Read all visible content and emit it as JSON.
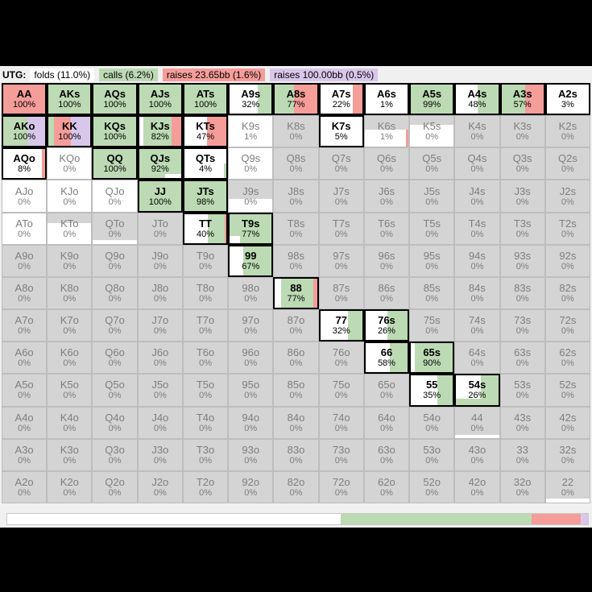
{
  "palette": {
    "w": "#ffffff",
    "g": "#bcdab3",
    "r": "#f59d99",
    "p": "#d8c7eb",
    "x": "#d4d4d4"
  },
  "header": {
    "position_label": "UTG:",
    "actions": [
      {
        "label": "folds (11.0%)",
        "color": "w"
      },
      {
        "label": "calls (6.2%)",
        "color": "g"
      },
      {
        "label": "raises 23.65bb (1.6%)",
        "color": "r"
      },
      {
        "label": "raises 100.00bb (0.5%)",
        "color": "p"
      }
    ]
  },
  "grid": {
    "rows": [
      [
        [
          "AA",
          "100%",
          1,
          "r100"
        ],
        [
          "AKs",
          "100%",
          1,
          "g100"
        ],
        [
          "AQs",
          "100%",
          1,
          "g100"
        ],
        [
          "AJs",
          "100%",
          1,
          "g100"
        ],
        [
          "ATs",
          "100%",
          1,
          "g100"
        ],
        [
          "A9s",
          "32%",
          1,
          "w66 g34"
        ],
        [
          "A8s",
          "77%",
          1,
          "g45 r55"
        ],
        [
          "A7s",
          "22%",
          1,
          "w78 r22"
        ],
        [
          "A6s",
          "1%",
          1,
          "w100"
        ],
        [
          "A5s",
          "99%",
          1,
          "g100"
        ],
        [
          "A4s",
          "48%",
          1,
          "w52 g48"
        ],
        [
          "A3s",
          "57%",
          1,
          "g57 r43"
        ],
        [
          "A2s",
          "3%",
          1,
          "w100"
        ]
      ],
      [
        [
          "AKo",
          "100%",
          1,
          "g58 p42"
        ],
        [
          "KK",
          "100%",
          1,
          "g13 r41 p46"
        ],
        [
          "KQs",
          "100%",
          1,
          "g100"
        ],
        [
          "KJs",
          "82%",
          1,
          "w10 g68 r22"
        ],
        [
          "KTs",
          "47%",
          1,
          "w53 r47"
        ],
        [
          "K9s",
          "1%",
          0,
          "w100"
        ],
        [
          "K8s",
          "0%",
          0,
          "x100"
        ],
        [
          "K7s",
          "5%",
          1,
          "w100"
        ],
        [
          "K6s",
          "1%",
          0,
          "x100",
          "w,100,55,l;r,6,55,r"
        ],
        [
          "K5s",
          "0%",
          0,
          "x100",
          "w,100,72,l"
        ],
        [
          "K4s",
          "0%",
          0,
          "x100"
        ],
        [
          "K3s",
          "0%",
          0,
          "x100"
        ],
        [
          "K2s",
          "0%",
          0,
          "x100"
        ]
      ],
      [
        [
          "AQo",
          "8%",
          1,
          "w92 r8"
        ],
        [
          "KQo",
          "0%",
          0,
          "w100"
        ],
        [
          "QQ",
          "100%",
          1,
          "g100"
        ],
        [
          "QJs",
          "92%",
          1,
          "g100",
          "w,38,16,r"
        ],
        [
          "QTs",
          "4%",
          1,
          "w100",
          "g,7,50,r"
        ],
        [
          "Q9s",
          "0%",
          0,
          "w100"
        ],
        [
          "Q8s",
          "0%",
          0,
          "x100"
        ],
        [
          "Q7s",
          "0%",
          0,
          "x100"
        ],
        [
          "Q6s",
          "0%",
          0,
          "x100"
        ],
        [
          "Q5s",
          "0%",
          0,
          "x100"
        ],
        [
          "Q4s",
          "0%",
          0,
          "x100"
        ],
        [
          "Q3s",
          "0%",
          0,
          "x100"
        ],
        [
          "Q2s",
          "0%",
          0,
          "x100"
        ]
      ],
      [
        [
          "AJo",
          "0%",
          0,
          "w100"
        ],
        [
          "KJo",
          "0%",
          0,
          "w100"
        ],
        [
          "QJo",
          "0%",
          0,
          "w100"
        ],
        [
          "JJ",
          "100%",
          1,
          "g100"
        ],
        [
          "JTs",
          "98%",
          1,
          "g100"
        ],
        [
          "J9s",
          "0%",
          0,
          "x100",
          "w,100,40,l"
        ],
        [
          "J8s",
          "0%",
          0,
          "x100"
        ],
        [
          "J7s",
          "0%",
          0,
          "x100"
        ],
        [
          "J6s",
          "0%",
          0,
          "x100"
        ],
        [
          "J5s",
          "0%",
          0,
          "x100"
        ],
        [
          "J4s",
          "0%",
          0,
          "x100"
        ],
        [
          "J3s",
          "0%",
          0,
          "x100"
        ],
        [
          "J2s",
          "0%",
          0,
          "x100"
        ]
      ],
      [
        [
          "ATo",
          "0%",
          0,
          "w100"
        ],
        [
          "KTo",
          "0%",
          0,
          "x100",
          "w,100,68,l"
        ],
        [
          "QTo",
          "0%",
          0,
          "x100",
          "w,100,13,l"
        ],
        [
          "JTo",
          "0%",
          0,
          "x100"
        ],
        [
          "TT",
          "40%",
          1,
          "w55 g40 r5"
        ],
        [
          "T9s",
          "77%",
          1,
          "g100",
          "w,25,25,l"
        ],
        [
          "T8s",
          "0%",
          0,
          "x100"
        ],
        [
          "T7s",
          "0%",
          0,
          "x100"
        ],
        [
          "T6s",
          "0%",
          0,
          "x100"
        ],
        [
          "T5s",
          "0%",
          0,
          "x100"
        ],
        [
          "T4s",
          "0%",
          0,
          "x100"
        ],
        [
          "T3s",
          "0%",
          0,
          "x100"
        ],
        [
          "T2s",
          "0%",
          0,
          "x100"
        ]
      ],
      [
        [
          "A9o",
          "0%",
          0,
          "x100"
        ],
        [
          "K9o",
          "0%",
          0,
          "x100"
        ],
        [
          "Q9o",
          "0%",
          0,
          "x100"
        ],
        [
          "J9o",
          "0%",
          0,
          "x100"
        ],
        [
          "T9o",
          "0%",
          0,
          "x100"
        ],
        [
          "99",
          "67%",
          1,
          "w33 g67"
        ],
        [
          "98s",
          "0%",
          0,
          "x100"
        ],
        [
          "97s",
          "0%",
          0,
          "x100"
        ],
        [
          "96s",
          "0%",
          0,
          "x100"
        ],
        [
          "95s",
          "0%",
          0,
          "x100"
        ],
        [
          "94s",
          "0%",
          0,
          "x100"
        ],
        [
          "93s",
          "0%",
          0,
          "x100"
        ],
        [
          "92s",
          "0%",
          0,
          "x100"
        ]
      ],
      [
        [
          "A8o",
          "0%",
          0,
          "x100"
        ],
        [
          "K8o",
          "0%",
          0,
          "x100"
        ],
        [
          "Q8o",
          "0%",
          0,
          "x100"
        ],
        [
          "J8o",
          "0%",
          0,
          "x100"
        ],
        [
          "T8o",
          "0%",
          0,
          "x100"
        ],
        [
          "98o",
          "0%",
          0,
          "x100"
        ],
        [
          "88",
          "77%",
          1,
          "w15 g77 r8"
        ],
        [
          "87s",
          "0%",
          0,
          "x100"
        ],
        [
          "86s",
          "0%",
          0,
          "x100"
        ],
        [
          "85s",
          "0%",
          0,
          "x100"
        ],
        [
          "84s",
          "0%",
          0,
          "x100"
        ],
        [
          "83s",
          "0%",
          0,
          "x100"
        ],
        [
          "82s",
          "0%",
          0,
          "x100"
        ]
      ],
      [
        [
          "A7o",
          "0%",
          0,
          "x100"
        ],
        [
          "K7o",
          "0%",
          0,
          "x100"
        ],
        [
          "Q7o",
          "0%",
          0,
          "x100"
        ],
        [
          "J7o",
          "0%",
          0,
          "x100"
        ],
        [
          "T7o",
          "0%",
          0,
          "x100"
        ],
        [
          "97o",
          "0%",
          0,
          "x100"
        ],
        [
          "87o",
          "0%",
          0,
          "x100"
        ],
        [
          "77",
          "32%",
          1,
          "w65 g35"
        ],
        [
          "76s",
          "26%",
          1,
          "w52 g48",
          "w,52,30,l"
        ],
        [
          "75s",
          "0%",
          0,
          "x100"
        ],
        [
          "74s",
          "0%",
          0,
          "x100"
        ],
        [
          "73s",
          "0%",
          0,
          "x100"
        ],
        [
          "72s",
          "0%",
          0,
          "x100"
        ]
      ],
      [
        [
          "A6o",
          "0%",
          0,
          "x100"
        ],
        [
          "K6o",
          "0%",
          0,
          "x100"
        ],
        [
          "Q6o",
          "0%",
          0,
          "x100"
        ],
        [
          "J6o",
          "0%",
          0,
          "x100"
        ],
        [
          "T6o",
          "0%",
          0,
          "x100"
        ],
        [
          "96o",
          "0%",
          0,
          "x100"
        ],
        [
          "86o",
          "0%",
          0,
          "x100"
        ],
        [
          "76o",
          "0%",
          0,
          "x100"
        ],
        [
          "66",
          "58%",
          1,
          "w58 g42"
        ],
        [
          "65s",
          "90%",
          1,
          "w9 g91"
        ],
        [
          "64s",
          "0%",
          0,
          "x100"
        ],
        [
          "63s",
          "0%",
          0,
          "x100"
        ],
        [
          "62s",
          "0%",
          0,
          "x100"
        ]
      ],
      [
        [
          "A5o",
          "0%",
          0,
          "x100"
        ],
        [
          "K5o",
          "0%",
          0,
          "x100"
        ],
        [
          "Q5o",
          "0%",
          0,
          "x100"
        ],
        [
          "J5o",
          "0%",
          0,
          "x100"
        ],
        [
          "T5o",
          "0%",
          0,
          "x100"
        ],
        [
          "95o",
          "0%",
          0,
          "x100"
        ],
        [
          "85o",
          "0%",
          0,
          "x100"
        ],
        [
          "75o",
          "0%",
          0,
          "x100"
        ],
        [
          "65o",
          "0%",
          0,
          "x100"
        ],
        [
          "55",
          "35%",
          1,
          "w64 g36"
        ],
        [
          "54s",
          "26%",
          1,
          "w58 g42",
          "g,58,22,l"
        ],
        [
          "53s",
          "0%",
          0,
          "x100"
        ],
        [
          "52s",
          "0%",
          0,
          "x100"
        ]
      ],
      [
        [
          "A4o",
          "0%",
          0,
          "x100"
        ],
        [
          "K4o",
          "0%",
          0,
          "x100"
        ],
        [
          "Q4o",
          "0%",
          0,
          "x100"
        ],
        [
          "J4o",
          "0%",
          0,
          "x100"
        ],
        [
          "T4o",
          "0%",
          0,
          "x100"
        ],
        [
          "94o",
          "0%",
          0,
          "x100"
        ],
        [
          "84o",
          "0%",
          0,
          "x100"
        ],
        [
          "74o",
          "0%",
          0,
          "x100"
        ],
        [
          "64o",
          "0%",
          0,
          "x100"
        ],
        [
          "54o",
          "0%",
          0,
          "x100"
        ],
        [
          "44",
          "0%",
          0,
          "x100",
          "w,100,10,l"
        ],
        [
          "43s",
          "0%",
          0,
          "x100"
        ],
        [
          "42s",
          "0%",
          0,
          "x100"
        ]
      ],
      [
        [
          "A3o",
          "0%",
          0,
          "x100"
        ],
        [
          "K3o",
          "0%",
          0,
          "x100"
        ],
        [
          "Q3o",
          "0%",
          0,
          "x100"
        ],
        [
          "J3o",
          "0%",
          0,
          "x100"
        ],
        [
          "T3o",
          "0%",
          0,
          "x100"
        ],
        [
          "93o",
          "0%",
          0,
          "x100"
        ],
        [
          "83o",
          "0%",
          0,
          "x100"
        ],
        [
          "73o",
          "0%",
          0,
          "x100"
        ],
        [
          "63o",
          "0%",
          0,
          "x100"
        ],
        [
          "53o",
          "0%",
          0,
          "x100"
        ],
        [
          "43o",
          "0%",
          0,
          "x100"
        ],
        [
          "33",
          "0%",
          0,
          "x100"
        ],
        [
          "32s",
          "0%",
          0,
          "x100"
        ]
      ],
      [
        [
          "A2o",
          "0%",
          0,
          "x100"
        ],
        [
          "K2o",
          "0%",
          0,
          "x100"
        ],
        [
          "Q2o",
          "0%",
          0,
          "x100"
        ],
        [
          "J2o",
          "0%",
          0,
          "x100"
        ],
        [
          "T2o",
          "0%",
          0,
          "x100"
        ],
        [
          "92o",
          "0%",
          0,
          "x100"
        ],
        [
          "82o",
          "0%",
          0,
          "x100"
        ],
        [
          "72o",
          "0%",
          0,
          "x100"
        ],
        [
          "62o",
          "0%",
          0,
          "x100"
        ],
        [
          "52o",
          "0%",
          0,
          "x100"
        ],
        [
          "42o",
          "0%",
          0,
          "x100"
        ],
        [
          "32o",
          "0%",
          0,
          "x100"
        ],
        [
          "22",
          "0%",
          0,
          "x100",
          "w,100,12,l"
        ]
      ]
    ]
  },
  "summary_bar": {
    "segments": [
      {
        "color": "w",
        "pct": 57.4
      },
      {
        "color": "g",
        "pct": 32.9
      },
      {
        "color": "r",
        "pct": 8.4
      },
      {
        "color": "p",
        "pct": 1.3
      }
    ]
  }
}
